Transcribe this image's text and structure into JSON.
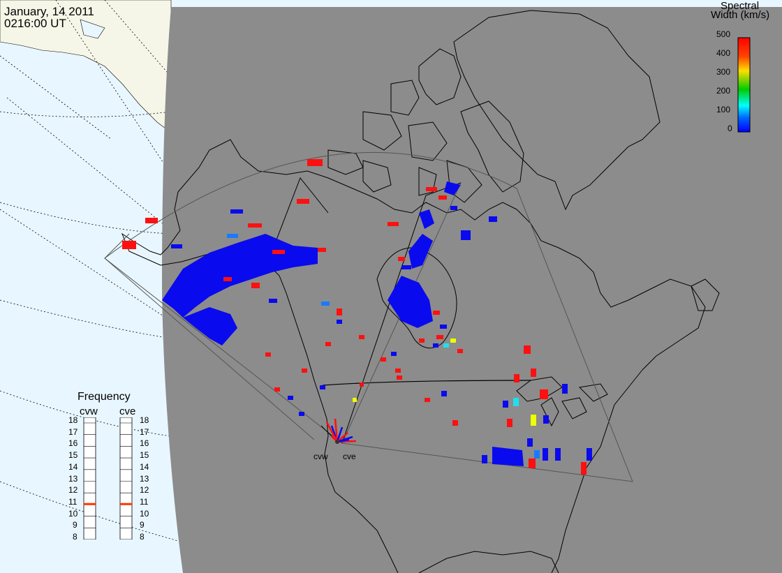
{
  "header": {
    "date": "January, 14 2011",
    "time": "0216:00 UT"
  },
  "colorbar": {
    "title_line1": "Spectral",
    "title_line2": "Width (km/s)",
    "ticks": [
      "500",
      "400",
      "300",
      "200",
      "100",
      "0"
    ],
    "colors": [
      "#ff0000",
      "#ff9900",
      "#ffff00",
      "#00cc00",
      "#00ffff",
      "#0066ff",
      "#0000ff"
    ]
  },
  "frequency": {
    "title": "Frequency",
    "radars": [
      {
        "code": "cvw",
        "value_mhz": 10.8
      },
      {
        "code": "cve",
        "value_mhz": 10.8
      }
    ],
    "scale": [
      "18",
      "17",
      "16",
      "15",
      "14",
      "13",
      "12",
      "11",
      "10",
      "9",
      "8"
    ],
    "indicator_color": "#ff3300"
  },
  "radar_sites": [
    {
      "code": "cvw"
    },
    {
      "code": "cve"
    }
  ],
  "colors": {
    "ocean": "#e8f6ff",
    "land_day": "#f6f6e8",
    "nightside": "#8c8c8c",
    "coast": "#000000",
    "fov": "#555555"
  }
}
